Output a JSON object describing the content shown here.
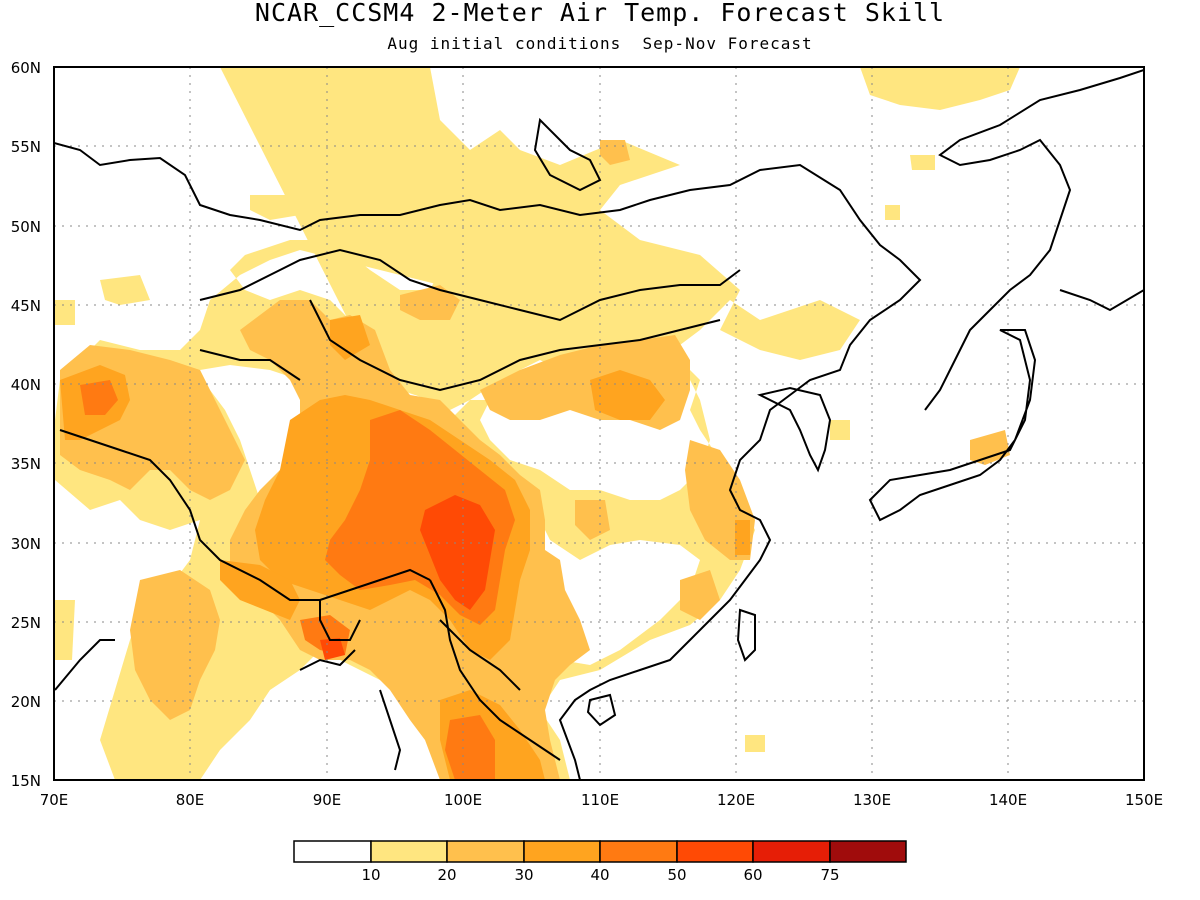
{
  "title": "NCAR_CCSM4 2-Meter Air Temp. Forecast Skill",
  "subtitle": "Aug initial conditions  Sep-Nov Forecast",
  "map": {
    "lon_range": [
      70,
      150
    ],
    "lat_range": [
      15,
      60
    ],
    "x_ticks": [
      "70E",
      "80E",
      "90E",
      "100E",
      "110E",
      "120E",
      "130E",
      "140E",
      "150E"
    ],
    "y_ticks": [
      "15N",
      "20N",
      "25N",
      "30N",
      "35N",
      "40N",
      "45N",
      "50N",
      "55N",
      "60N"
    ],
    "grid": "dotted"
  },
  "colorbar": {
    "labels": [
      "10",
      "20",
      "30",
      "40",
      "50",
      "60",
      "75"
    ],
    "colors": [
      "#ffffff",
      "#ffe680",
      "#ffc04d",
      "#ffa41f",
      "#ff7a12",
      "#ff4a05",
      "#e61e06",
      "#a00c0c"
    ]
  },
  "palette": {
    "s1": "#ffe680",
    "s2": "#ffc04d",
    "s3": "#ffa41f",
    "s4": "#ff7a12",
    "s5": "#ff4a05"
  }
}
